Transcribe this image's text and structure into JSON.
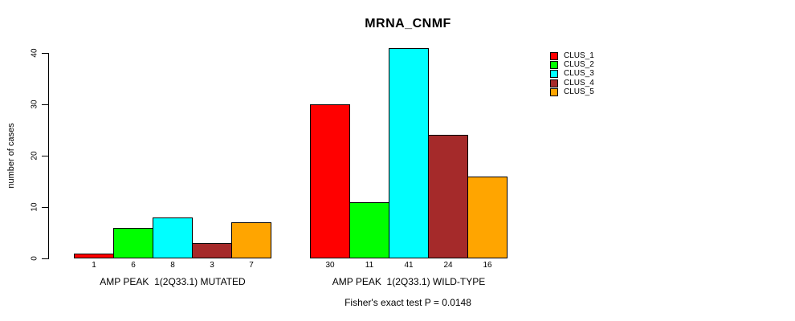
{
  "chart_data": {
    "type": "bar",
    "title": "MRNA_CNMF",
    "ylabel": "number of cases",
    "xlabel": "",
    "ylim": [
      0,
      41
    ],
    "yticks": [
      0,
      10,
      20,
      30,
      40
    ],
    "grid": false,
    "legend_position": "right-inside",
    "background_color": "#ffffff",
    "bar_border_color": "#000000",
    "series_names": [
      "CLUS_1",
      "CLUS_2",
      "CLUS_3",
      "CLUS_4",
      "CLUS_5"
    ],
    "series_colors": [
      "#ff0000",
      "#00ff00",
      "#00ffff",
      "#a52a2a",
      "#ffa500"
    ],
    "groups": [
      {
        "label": "AMP PEAK  1(2Q33.1) MUTATED",
        "values": [
          1,
          6,
          8,
          3,
          7
        ]
      },
      {
        "label": "AMP PEAK  1(2Q33.1) WILD-TYPE",
        "values": [
          30,
          11,
          41,
          24,
          16
        ]
      }
    ],
    "value_labels_shown": true,
    "annotation": "Fisher's exact test P = 0.0148"
  }
}
